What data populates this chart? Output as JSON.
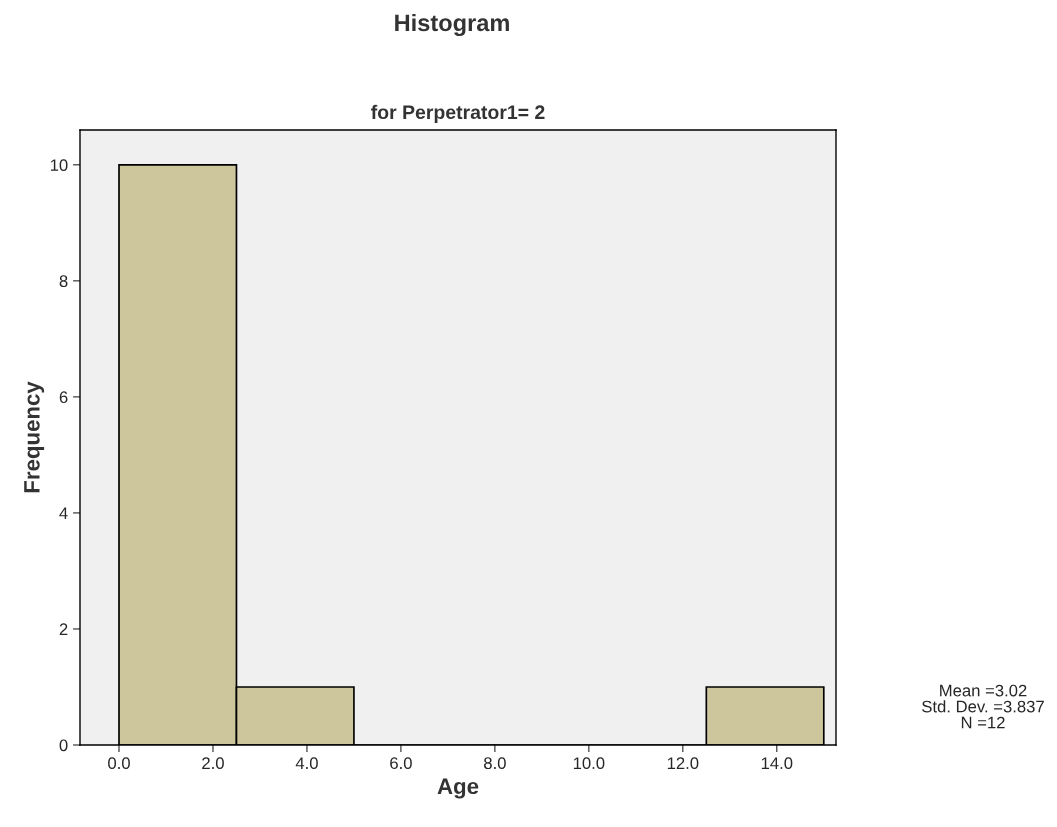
{
  "chart_data": {
    "type": "histogram",
    "title": "Histogram",
    "subtitle": "for Perpetrator1= 2",
    "xlabel": "Age",
    "ylabel": "Frequency",
    "bins": [
      0,
      2.5,
      5,
      7.5,
      10,
      12.5,
      15
    ],
    "values": [
      10,
      1,
      0,
      0,
      0,
      1
    ],
    "color": "#cdc69c",
    "xlim": [
      -0.83,
      15.26
    ],
    "ylim": [
      0,
      10.6
    ],
    "xticks": [
      {
        "value": 0,
        "label": "0.0"
      },
      {
        "value": 2,
        "label": "2.0"
      },
      {
        "value": 4,
        "label": "4.0"
      },
      {
        "value": 6,
        "label": "6.0"
      },
      {
        "value": 8,
        "label": "8.0"
      },
      {
        "value": 10,
        "label": "10.0"
      },
      {
        "value": 12,
        "label": "12.0"
      },
      {
        "value": 14,
        "label": "14.0"
      }
    ],
    "yticks": [
      0,
      2,
      4,
      6,
      8,
      10
    ],
    "grid": false,
    "annotations": [
      "Mean =3.02",
      "Std. Dev. =3.837",
      "N =12"
    ]
  }
}
